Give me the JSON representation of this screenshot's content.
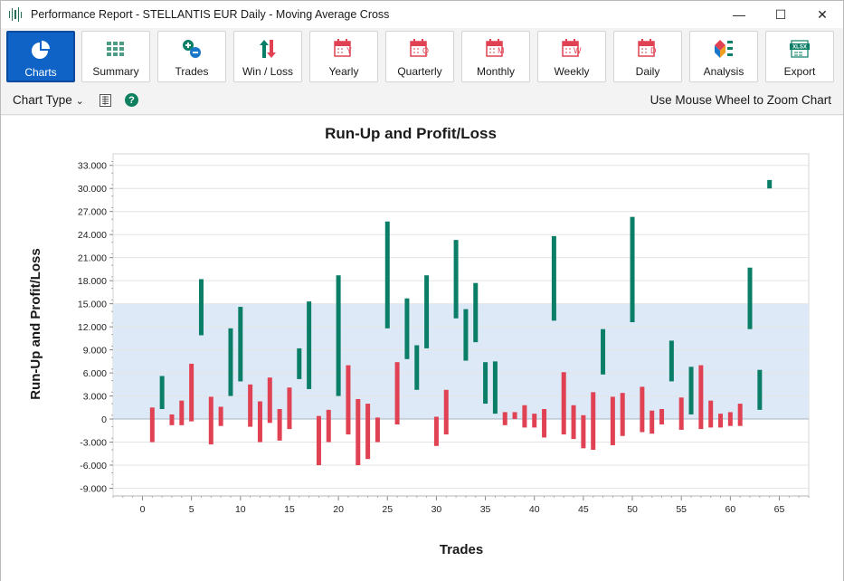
{
  "window": {
    "title": "Performance Report - STELLANTIS EUR Daily - Moving Average Cross",
    "minimize": "—",
    "maximize": "☐",
    "close": "✕"
  },
  "toolbar": {
    "buttons": [
      {
        "id": "charts",
        "label": "Charts",
        "icon": "pie-chart-icon",
        "active": true
      },
      {
        "id": "summary",
        "label": "Summary",
        "icon": "grid-icon"
      },
      {
        "id": "trades",
        "label": "Trades",
        "icon": "plus-minus-icon"
      },
      {
        "id": "winloss",
        "label": "Win / Loss",
        "icon": "up-down-arrows-icon"
      },
      {
        "id": "yearly",
        "label": "Yearly",
        "icon": "calendar-y-icon",
        "letter": "Y"
      },
      {
        "id": "quarterly",
        "label": "Quarterly",
        "icon": "calendar-q-icon",
        "letter": "Q"
      },
      {
        "id": "monthly",
        "label": "Monthly",
        "icon": "calendar-m-icon",
        "letter": "M"
      },
      {
        "id": "weekly",
        "label": "Weekly",
        "icon": "calendar-w-icon",
        "letter": "W"
      },
      {
        "id": "daily",
        "label": "Daily",
        "icon": "calendar-d-icon",
        "letter": "D"
      },
      {
        "id": "analysis",
        "label": "Analysis",
        "icon": "analysis-icon"
      },
      {
        "id": "export",
        "label": "Export",
        "icon": "xlsx-icon",
        "badge": "XLSX"
      }
    ]
  },
  "subbar": {
    "chart_type_label": "Chart Type",
    "chart_type_arrow": "⌄",
    "help_glyph": "?",
    "zoom_hint": "Use Mouse Wheel to Zoom Chart"
  },
  "colors": {
    "accent": "#0f63c7",
    "positive": "#0b7e67",
    "negative": "#e04254",
    "band": "#dde9f6"
  },
  "chart_data": {
    "type": "bar",
    "subtype": "floating-range",
    "title": "Run-Up and Profit/Loss",
    "xlabel": "Trades",
    "ylabel": "Run-Up and Profit/Loss",
    "xlim": [
      -3,
      68
    ],
    "ylim": [
      -10000,
      34500
    ],
    "x_ticks": [
      0,
      5,
      10,
      15,
      20,
      25,
      30,
      35,
      40,
      45,
      50,
      55,
      60,
      65
    ],
    "y_ticks": [
      -9000,
      -6000,
      -3000,
      0,
      3000,
      6000,
      9000,
      12000,
      15000,
      18000,
      21000,
      24000,
      27000,
      30000,
      33000
    ],
    "y_tick_labels": [
      "-9.000",
      "-6.000",
      "-3.000",
      "0",
      "3.000",
      "6.000",
      "9.000",
      "12.000",
      "15.000",
      "18.000",
      "21.000",
      "24.000",
      "27.000",
      "30.000",
      "33.000"
    ],
    "band": {
      "from": 0,
      "to": 15000
    },
    "grid": true,
    "bars": [
      {
        "x": 1,
        "low": -3000,
        "high": 1500,
        "win": false
      },
      {
        "x": 2,
        "low": 1300,
        "high": 5600,
        "win": true
      },
      {
        "x": 3,
        "low": -800,
        "high": 600,
        "win": false
      },
      {
        "x": 4,
        "low": -800,
        "high": 2400,
        "win": false
      },
      {
        "x": 5,
        "low": -300,
        "high": 7200,
        "win": false
      },
      {
        "x": 6,
        "low": 10900,
        "high": 18200,
        "win": true
      },
      {
        "x": 7,
        "low": -3300,
        "high": 2900,
        "win": false
      },
      {
        "x": 8,
        "low": -900,
        "high": 1600,
        "win": false
      },
      {
        "x": 9,
        "low": 3000,
        "high": 11800,
        "win": true
      },
      {
        "x": 10,
        "low": 4900,
        "high": 14600,
        "win": true
      },
      {
        "x": 11,
        "low": -1000,
        "high": 4500,
        "win": false
      },
      {
        "x": 12,
        "low": -3000,
        "high": 2300,
        "win": false
      },
      {
        "x": 13,
        "low": -500,
        "high": 5400,
        "win": false
      },
      {
        "x": 14,
        "low": -2800,
        "high": 1300,
        "win": false
      },
      {
        "x": 15,
        "low": -1300,
        "high": 4100,
        "win": false
      },
      {
        "x": 16,
        "low": 5200,
        "high": 9200,
        "win": true
      },
      {
        "x": 17,
        "low": 3900,
        "high": 15300,
        "win": true
      },
      {
        "x": 18,
        "low": -6000,
        "high": 400,
        "win": false
      },
      {
        "x": 19,
        "low": -3000,
        "high": 1200,
        "win": false
      },
      {
        "x": 20,
        "low": 3000,
        "high": 18700,
        "win": true
      },
      {
        "x": 21,
        "low": -2000,
        "high": 7000,
        "win": false
      },
      {
        "x": 22,
        "low": -6000,
        "high": 2600,
        "win": false
      },
      {
        "x": 23,
        "low": -5200,
        "high": 2000,
        "win": false
      },
      {
        "x": 24,
        "low": -3000,
        "high": 200,
        "win": false
      },
      {
        "x": 25,
        "low": 11800,
        "high": 25700,
        "win": true
      },
      {
        "x": 26,
        "low": -700,
        "high": 7400,
        "win": false
      },
      {
        "x": 27,
        "low": 7800,
        "high": 15700,
        "win": true
      },
      {
        "x": 28,
        "low": 3800,
        "high": 9600,
        "win": true
      },
      {
        "x": 29,
        "low": 9200,
        "high": 18700,
        "win": true
      },
      {
        "x": 30,
        "low": -3500,
        "high": 300,
        "win": false
      },
      {
        "x": 31,
        "low": -2000,
        "high": 3800,
        "win": false
      },
      {
        "x": 32,
        "low": 13100,
        "high": 23300,
        "win": true
      },
      {
        "x": 33,
        "low": 7600,
        "high": 14300,
        "win": true
      },
      {
        "x": 34,
        "low": 10000,
        "high": 17700,
        "win": true
      },
      {
        "x": 35,
        "low": 2000,
        "high": 7400,
        "win": true
      },
      {
        "x": 36,
        "low": 700,
        "high": 7500,
        "win": true
      },
      {
        "x": 37,
        "low": -800,
        "high": 900,
        "win": false
      },
      {
        "x": 38,
        "low": 0,
        "high": 900,
        "win": false
      },
      {
        "x": 39,
        "low": -1100,
        "high": 1800,
        "win": false
      },
      {
        "x": 40,
        "low": -1100,
        "high": 700,
        "win": false
      },
      {
        "x": 41,
        "low": -2400,
        "high": 1300,
        "win": false
      },
      {
        "x": 42,
        "low": 12800,
        "high": 23800,
        "win": true
      },
      {
        "x": 43,
        "low": -2000,
        "high": 6100,
        "win": false
      },
      {
        "x": 44,
        "low": -2600,
        "high": 1800,
        "win": false
      },
      {
        "x": 45,
        "low": -3800,
        "high": 500,
        "win": false
      },
      {
        "x": 46,
        "low": -4000,
        "high": 3500,
        "win": false
      },
      {
        "x": 47,
        "low": 5800,
        "high": 11700,
        "win": true
      },
      {
        "x": 48,
        "low": -3400,
        "high": 2900,
        "win": false
      },
      {
        "x": 49,
        "low": -2200,
        "high": 3400,
        "win": false
      },
      {
        "x": 50,
        "low": 12600,
        "high": 26300,
        "win": true
      },
      {
        "x": 51,
        "low": -1700,
        "high": 4200,
        "win": false
      },
      {
        "x": 52,
        "low": -1900,
        "high": 1100,
        "win": false
      },
      {
        "x": 53,
        "low": -700,
        "high": 1300,
        "win": false
      },
      {
        "x": 54,
        "low": 4900,
        "high": 10200,
        "win": true
      },
      {
        "x": 55,
        "low": -1400,
        "high": 2800,
        "win": false
      },
      {
        "x": 56,
        "low": 600,
        "high": 6800,
        "win": true
      },
      {
        "x": 57,
        "low": -1300,
        "high": 7000,
        "win": false
      },
      {
        "x": 58,
        "low": -1100,
        "high": 2400,
        "win": false
      },
      {
        "x": 59,
        "low": -1100,
        "high": 700,
        "win": false
      },
      {
        "x": 60,
        "low": -900,
        "high": 900,
        "win": false
      },
      {
        "x": 61,
        "low": -900,
        "high": 2000,
        "win": false
      },
      {
        "x": 62,
        "low": 11700,
        "high": 19700,
        "win": true
      },
      {
        "x": 63,
        "low": 1200,
        "high": 6400,
        "win": true
      },
      {
        "x": 64,
        "low": 30000,
        "high": 31100,
        "win": true
      }
    ]
  }
}
